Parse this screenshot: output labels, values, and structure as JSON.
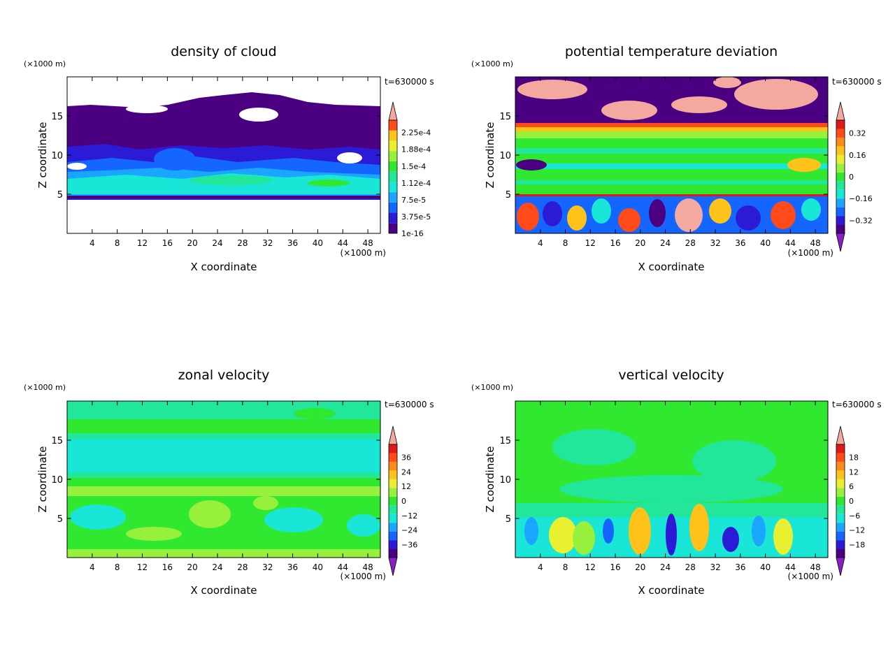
{
  "chart_data": [
    {
      "type": "heatmap",
      "title": "density of cloud",
      "xlabel": "X coordinate",
      "ylabel": "Z coordinate",
      "x_unit": "(×1000 m)",
      "y_unit": "(×1000 m)",
      "time_label": "t=630000 s",
      "xlim": [
        0,
        50
      ],
      "ylim": [
        0,
        20
      ],
      "x_ticks": [
        4,
        8,
        12,
        16,
        20,
        24,
        28,
        32,
        36,
        40,
        44,
        48
      ],
      "y_ticks": [
        5,
        10,
        15
      ],
      "colorbar_labels": [
        "1e-16",
        "3.75e-5",
        "7.5e-5",
        "1.12e-4",
        "1.5e-4",
        "1.88e-4",
        "2.25e-4"
      ],
      "colorbar_min_triangle": false
    },
    {
      "type": "heatmap",
      "title": "potential temperature deviation",
      "xlabel": "X coordinate",
      "ylabel": "Z coordinate",
      "x_unit": "(×1000 m)",
      "y_unit": "(×1000 m)",
      "time_label": "t=630000 s",
      "xlim": [
        0,
        50
      ],
      "ylim": [
        0,
        20
      ],
      "x_ticks": [
        4,
        8,
        12,
        16,
        20,
        24,
        28,
        32,
        36,
        40,
        44,
        48
      ],
      "y_ticks": [
        5,
        10,
        15
      ],
      "colorbar_labels": [
        "−0.32",
        "−0.16",
        "0",
        "0.16",
        "0.32"
      ],
      "colorbar_min_triangle": true
    },
    {
      "type": "heatmap",
      "title": "zonal velocity",
      "xlabel": "X coordinate",
      "ylabel": "Z coordinate",
      "x_unit": "(×1000 m)",
      "y_unit": "(×1000 m)",
      "time_label": "t=630000 s",
      "xlim": [
        0,
        50
      ],
      "ylim": [
        0,
        20
      ],
      "x_ticks": [
        4,
        8,
        12,
        16,
        20,
        24,
        28,
        32,
        36,
        40,
        44,
        48
      ],
      "y_ticks": [
        5,
        10,
        15
      ],
      "colorbar_labels": [
        "−36",
        "−24",
        "−12",
        "0",
        "12",
        "24",
        "36"
      ],
      "colorbar_min_triangle": true
    },
    {
      "type": "heatmap",
      "title": "vertical velocity",
      "xlabel": "X coordinate",
      "ylabel": "Z coordinate",
      "x_unit": "(×1000 m)",
      "y_unit": "(×1000 m)",
      "time_label": "t=630000 s",
      "xlim": [
        0,
        50
      ],
      "ylim": [
        0,
        20
      ],
      "x_ticks": [
        4,
        8,
        12,
        16,
        20,
        24,
        28,
        32,
        36,
        40,
        44,
        48
      ],
      "y_ticks": [
        5,
        10,
        15
      ],
      "colorbar_labels": [
        "−18",
        "−12",
        "−6",
        "0",
        "6",
        "12",
        "18"
      ],
      "colorbar_min_triangle": true
    }
  ],
  "colors": {
    "palette": [
      "#4b0082",
      "#2c1bd6",
      "#1565ff",
      "#1aa6ff",
      "#19e6d6",
      "#22e69a",
      "#30e830",
      "#96f03c",
      "#e8f030",
      "#ffc21a",
      "#ff8a1a",
      "#ff4a1a",
      "#e01818",
      "#f4a9a0"
    ],
    "cloud_palette": [
      "#4b0082",
      "#2c1bd6",
      "#1565ff",
      "#1aa6ff",
      "#19e6d6",
      "#22e69a",
      "#30e830",
      "#96f03c",
      "#e8f030",
      "#ffc21a",
      "#ff4a1a",
      "#f4a9a0"
    ],
    "under_color": "#8a1fc8",
    "over_color": "#f4a9a0"
  }
}
